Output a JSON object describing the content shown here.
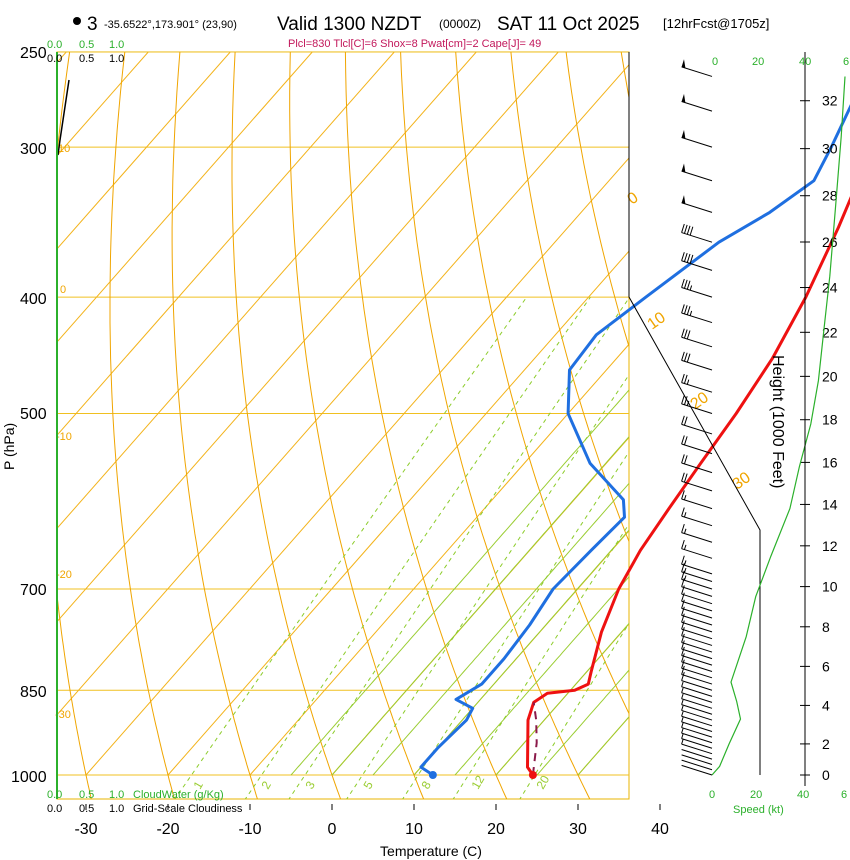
{
  "header": {
    "marker": "3",
    "coords": "-35.6522°,173.901° (23,90)",
    "valid": "Valid 1300 NZDT",
    "zulu": "(0000Z)",
    "date": "SAT 11 Oct 2025",
    "forecast": "[12hrFcst@1705z]",
    "indices": "Plcl=830 Tlcl[C]=6 Shox=8 Pwat[cm]=2 Cape[J]= 49"
  },
  "chart_data": {
    "type": "line",
    "title": "Valid 1300 NZDT (0000Z) SAT 11 Oct 2025 [12hrFcst@1705z]",
    "xlabel": "Temperature (C)",
    "ylabel": "P (hPa)",
    "y2label": "Height (1000 Feet)",
    "x_ticks": [
      "-30",
      "-20",
      "-10",
      "0",
      "10",
      "20",
      "30",
      "40"
    ],
    "p_ticks": [
      "250",
      "300",
      "400",
      "500",
      "700",
      "850",
      "1000"
    ],
    "height_ticks": [
      "0",
      "2",
      "4",
      "6",
      "8",
      "10",
      "12",
      "14",
      "16",
      "18",
      "20",
      "22",
      "24",
      "26",
      "28",
      "30",
      "32"
    ],
    "cloudwater_scale": [
      "0.0",
      "0.5",
      "1.0"
    ],
    "cloudwater_label": "CloudWater (g/Kg)",
    "cloudiness_scale": [
      "0.0",
      "0.5",
      "1.0"
    ],
    "cloudiness_label": "Grid-Scale Cloudiness",
    "speed_label": "Speed (kt)",
    "speed_ticks": [
      "0",
      "20",
      "40",
      "6"
    ],
    "theta_labels": [
      "-10",
      "0",
      "10",
      "20",
      "30"
    ],
    "theta_side_labels": [
      "-10",
      "0",
      "-10",
      "-20",
      "-30"
    ],
    "mixing_ratio_labels": [
      "1",
      "2",
      "3",
      "5",
      "8",
      "12",
      "20"
    ],
    "series": [
      {
        "name": "Temperature",
        "color": "#ee1111",
        "points": [
          [
            -5.5,
            262
          ],
          [
            -1.5,
            300
          ],
          [
            3,
            350
          ],
          [
            6.5,
            400
          ],
          [
            9,
            450
          ],
          [
            10.5,
            500
          ],
          [
            11.5,
            550
          ],
          [
            12.5,
            600
          ],
          [
            13.5,
            650
          ],
          [
            15,
            700
          ],
          [
            17.5,
            760
          ],
          [
            20.5,
            820
          ],
          [
            21.5,
            840
          ],
          [
            20.5,
            850
          ],
          [
            17.5,
            855
          ],
          [
            16.8,
            870
          ],
          [
            18,
            900
          ],
          [
            21,
            950
          ],
          [
            23,
            985
          ],
          [
            24.5,
            1000
          ]
        ]
      },
      {
        "name": "Dewpoint",
        "color": "#1f6fe0",
        "points": [
          [
            -10,
            262
          ],
          [
            -6.5,
            300
          ],
          [
            -5,
            320
          ],
          [
            -7,
            340
          ],
          [
            -10,
            360
          ],
          [
            -13,
            400
          ],
          [
            -15,
            430
          ],
          [
            -14.5,
            460
          ],
          [
            -10,
            500
          ],
          [
            -2,
            550
          ],
          [
            6,
            590
          ],
          [
            8,
            610
          ],
          [
            7.5,
            650
          ],
          [
            7,
            700
          ],
          [
            8,
            750
          ],
          [
            8.5,
            800
          ],
          [
            8.5,
            840
          ],
          [
            7,
            865
          ],
          [
            10,
            880
          ],
          [
            10.5,
            900
          ],
          [
            10,
            950
          ],
          [
            10,
            985
          ],
          [
            12.3,
            1000
          ]
        ]
      },
      {
        "name": "Parcel",
        "color": "#8b1a4a",
        "points": [
          [
            24.5,
            1000
          ],
          [
            21.5,
            940
          ],
          [
            19,
            900
          ],
          [
            16.8,
            870
          ]
        ]
      }
    ],
    "surface_points": [
      {
        "name": "surface-temp",
        "color": "#ee1111",
        "t": 24.5,
        "p": 1000
      },
      {
        "name": "surface-dewpoint",
        "color": "#1f6fe0",
        "t": 12.3,
        "p": 1000
      }
    ],
    "height_profile_pts": [
      [
        0,
        2
      ],
      [
        0.4,
        820
      ],
      [
        0.9,
        2000
      ],
      [
        1.5,
        3300
      ],
      [
        1.3,
        4200
      ],
      [
        1.0,
        5200
      ],
      [
        1.8,
        7500
      ],
      [
        2.3,
        9500
      ],
      [
        3.1,
        11500
      ],
      [
        4.1,
        13800
      ],
      [
        4.6,
        15800
      ],
      [
        5.2,
        17800
      ],
      [
        5.6,
        19800
      ],
      [
        5.9,
        22200
      ],
      [
        6.2,
        24500
      ],
      [
        6.5,
        27500
      ],
      [
        6.8,
        30500
      ],
      [
        7.0,
        33000
      ]
    ],
    "wind_barbs": [
      {
        "p": 1000,
        "spd": 3
      },
      {
        "p": 990,
        "spd": 3
      },
      {
        "p": 980,
        "spd": 4
      },
      {
        "p": 970,
        "spd": 4
      },
      {
        "p": 960,
        "spd": 5
      },
      {
        "p": 950,
        "spd": 5
      },
      {
        "p": 940,
        "spd": 5
      },
      {
        "p": 930,
        "spd": 5
      },
      {
        "p": 920,
        "spd": 5
      },
      {
        "p": 910,
        "spd": 5
      },
      {
        "p": 900,
        "spd": 5
      },
      {
        "p": 890,
        "spd": 5
      },
      {
        "p": 880,
        "spd": 5
      },
      {
        "p": 870,
        "spd": 5
      },
      {
        "p": 860,
        "spd": 5
      },
      {
        "p": 850,
        "spd": 10
      },
      {
        "p": 840,
        "spd": 10
      },
      {
        "p": 830,
        "spd": 10
      },
      {
        "p": 820,
        "spd": 10
      },
      {
        "p": 810,
        "spd": 10
      },
      {
        "p": 800,
        "spd": 10
      },
      {
        "p": 790,
        "spd": 10
      },
      {
        "p": 780,
        "spd": 10
      },
      {
        "p": 770,
        "spd": 10
      },
      {
        "p": 760,
        "spd": 10
      },
      {
        "p": 750,
        "spd": 10
      },
      {
        "p": 740,
        "spd": 10
      },
      {
        "p": 730,
        "spd": 10
      },
      {
        "p": 720,
        "spd": 10
      },
      {
        "p": 710,
        "spd": 10
      },
      {
        "p": 700,
        "spd": 15
      },
      {
        "p": 690,
        "spd": 15
      },
      {
        "p": 680,
        "spd": 15
      },
      {
        "p": 660,
        "spd": 15
      },
      {
        "p": 640,
        "spd": 15
      },
      {
        "p": 620,
        "spd": 15
      },
      {
        "p": 600,
        "spd": 15
      },
      {
        "p": 580,
        "spd": 20
      },
      {
        "p": 560,
        "spd": 20
      },
      {
        "p": 540,
        "spd": 20
      },
      {
        "p": 520,
        "spd": 20
      },
      {
        "p": 500,
        "spd": 25
      },
      {
        "p": 480,
        "spd": 25
      },
      {
        "p": 460,
        "spd": 30
      },
      {
        "p": 440,
        "spd": 30
      },
      {
        "p": 420,
        "spd": 35
      },
      {
        "p": 400,
        "spd": 35
      },
      {
        "p": 380,
        "spd": 40
      },
      {
        "p": 360,
        "spd": 40
      },
      {
        "p": 340,
        "spd": 50
      },
      {
        "p": 320,
        "spd": 50
      },
      {
        "p": 300,
        "spd": 50
      },
      {
        "p": 280,
        "spd": 50
      },
      {
        "p": 262,
        "spd": 50
      }
    ]
  }
}
